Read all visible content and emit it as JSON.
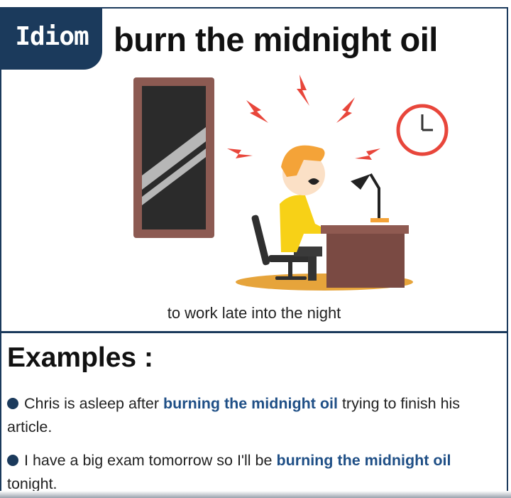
{
  "header": {
    "tag": "Idiom",
    "title": "burn the midnight oil"
  },
  "meaning": "to work late into the night",
  "examples": {
    "heading": "Examples :",
    "items": [
      {
        "before": "Chris is asleep after ",
        "highlight": "burning the midnight oil",
        "after": " trying to finish his article."
      },
      {
        "before": "I have a big exam tomorrow so I'll be ",
        "highlight": "burning the midnight oil",
        "after": " tonight."
      }
    ]
  },
  "colors": {
    "brand_navy": "#1b3a5c",
    "highlight_blue": "#1f4f86",
    "lightning_red": "#e8463b",
    "shirt_yellow": "#f7d117",
    "hair_orange": "#f4a338"
  },
  "illustration_icons": [
    "window-with-moon-icon",
    "lightning-icon",
    "clock-icon",
    "man-at-desk-icon",
    "desk-lamp-icon",
    "office-chair-icon"
  ]
}
